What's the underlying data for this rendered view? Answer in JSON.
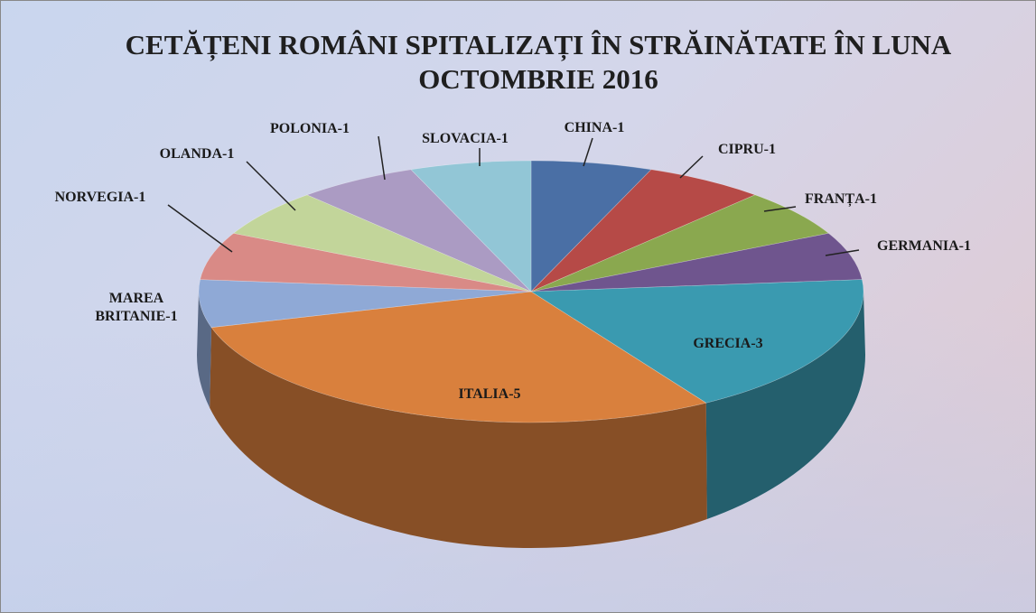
{
  "chart_data": {
    "type": "pie3d",
    "title": "CETĂȚENI ROMÂNI SPITALIZAȚI ÎN STRĂINĂTATE ÎN LUNA OCTOMBRIE 2016",
    "values": [
      1,
      1,
      1,
      1,
      3,
      5,
      1,
      1,
      1,
      1,
      1
    ],
    "value_labels": [
      "CHINA-1",
      "CIPRU-1",
      "FRANȚA-1",
      "GERMANIA-1",
      "GRECIA-3",
      "ITALIA-5",
      "MAREA BRITANIE-1",
      "NORVEGIA-1",
      "OLANDA-1",
      "POLONIA-1",
      "SLOVACIA-1"
    ],
    "colors": [
      "#4a6fa5",
      "#b64a47",
      "#8aa84f",
      "#6f558e",
      "#3a9ab0",
      "#d9803d",
      "#8fa9d6",
      "#d98a86",
      "#c2d59a",
      "#ab9bc3",
      "#92c6d6"
    ]
  }
}
